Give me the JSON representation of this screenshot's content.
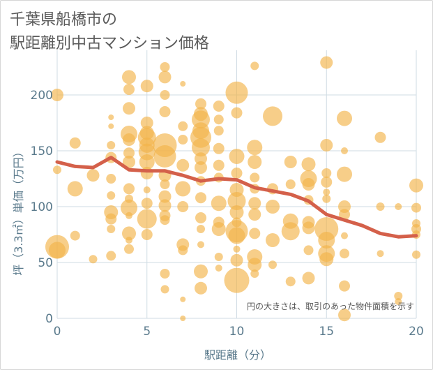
{
  "title": [
    "千葉県船橋市の",
    "駅距離別中古マンション価格"
  ],
  "chart_data": {
    "type": "scatter",
    "xlabel": "駅距離（分）",
    "ylabel": "坪（3.3㎡）単価（万円）",
    "xlim": [
      0,
      20
    ],
    "ylim": [
      0,
      240
    ],
    "xticks": [
      0,
      5,
      10,
      15,
      20
    ],
    "yticks": [
      0,
      50,
      100,
      150,
      200
    ],
    "grid": true,
    "annotation": "円の大きさは、取引のあった物件面積を示す",
    "colors": {
      "bubble": "#f2b34a",
      "trend": "#d4604a",
      "grid": "#cfdbe3",
      "axis_text": "#5a7a8c"
    },
    "bubbles": [
      {
        "x": 0,
        "y": 200,
        "s": 9
      },
      {
        "x": 0,
        "y": 133,
        "s": 6
      },
      {
        "x": 0,
        "y": 64,
        "s": 17
      },
      {
        "x": 0,
        "y": 61,
        "s": 12
      },
      {
        "x": 1,
        "y": 157,
        "s": 8
      },
      {
        "x": 1,
        "y": 116,
        "s": 11
      },
      {
        "x": 1,
        "y": 74,
        "s": 7
      },
      {
        "x": 2,
        "y": 128,
        "s": 9
      },
      {
        "x": 2,
        "y": 53,
        "s": 6
      },
      {
        "x": 3,
        "y": 180,
        "s": 4
      },
      {
        "x": 3,
        "y": 172,
        "s": 4
      },
      {
        "x": 3,
        "y": 155,
        "s": 6
      },
      {
        "x": 3,
        "y": 144,
        "s": 8
      },
      {
        "x": 3,
        "y": 125,
        "s": 7
      },
      {
        "x": 3,
        "y": 110,
        "s": 6
      },
      {
        "x": 3,
        "y": 95,
        "s": 10
      },
      {
        "x": 3,
        "y": 89,
        "s": 8
      },
      {
        "x": 3,
        "y": 80,
        "s": 6
      },
      {
        "x": 3,
        "y": 56,
        "s": 7
      },
      {
        "x": 4,
        "y": 216,
        "s": 10
      },
      {
        "x": 4,
        "y": 205,
        "s": 8
      },
      {
        "x": 4,
        "y": 188,
        "s": 9
      },
      {
        "x": 4,
        "y": 165,
        "s": 12
      },
      {
        "x": 4,
        "y": 160,
        "s": 9
      },
      {
        "x": 4,
        "y": 148,
        "s": 8
      },
      {
        "x": 4,
        "y": 140,
        "s": 9
      },
      {
        "x": 4,
        "y": 116,
        "s": 8
      },
      {
        "x": 4,
        "y": 107,
        "s": 6
      },
      {
        "x": 4,
        "y": 99,
        "s": 12
      },
      {
        "x": 4,
        "y": 92,
        "s": 5
      },
      {
        "x": 4,
        "y": 76,
        "s": 10
      },
      {
        "x": 4,
        "y": 70,
        "s": 5
      },
      {
        "x": 4,
        "y": 62,
        "s": 7
      },
      {
        "x": 5,
        "y": 208,
        "s": 9
      },
      {
        "x": 5,
        "y": 175,
        "s": 9
      },
      {
        "x": 5,
        "y": 166,
        "s": 10
      },
      {
        "x": 5,
        "y": 162,
        "s": 13
      },
      {
        "x": 5,
        "y": 155,
        "s": 11
      },
      {
        "x": 5,
        "y": 149,
        "s": 12
      },
      {
        "x": 5,
        "y": 140,
        "s": 11
      },
      {
        "x": 5,
        "y": 130,
        "s": 9
      },
      {
        "x": 5,
        "y": 115,
        "s": 5
      },
      {
        "x": 5,
        "y": 103,
        "s": 8
      },
      {
        "x": 5,
        "y": 89,
        "s": 14
      },
      {
        "x": 5,
        "y": 75,
        "s": 8
      },
      {
        "x": 6,
        "y": 225,
        "s": 7
      },
      {
        "x": 6,
        "y": 216,
        "s": 9
      },
      {
        "x": 6,
        "y": 200,
        "s": 7
      },
      {
        "x": 6,
        "y": 185,
        "s": 8
      },
      {
        "x": 6,
        "y": 155,
        "s": 17
      },
      {
        "x": 6,
        "y": 145,
        "s": 16
      },
      {
        "x": 6,
        "y": 128,
        "s": 9
      },
      {
        "x": 6,
        "y": 120,
        "s": 7
      },
      {
        "x": 6,
        "y": 109,
        "s": 9
      },
      {
        "x": 6,
        "y": 101,
        "s": 9
      },
      {
        "x": 6,
        "y": 92,
        "s": 8
      },
      {
        "x": 6,
        "y": 88,
        "s": 7
      },
      {
        "x": 6,
        "y": 40,
        "s": 7
      },
      {
        "x": 6,
        "y": 26,
        "s": 6
      },
      {
        "x": 7,
        "y": 210,
        "s": 4
      },
      {
        "x": 7,
        "y": 172,
        "s": 7
      },
      {
        "x": 7,
        "y": 160,
        "s": 7
      },
      {
        "x": 7,
        "y": 137,
        "s": 9
      },
      {
        "x": 7,
        "y": 116,
        "s": 11
      },
      {
        "x": 7,
        "y": 100,
        "s": 8
      },
      {
        "x": 7,
        "y": 66,
        "s": 9
      },
      {
        "x": 7,
        "y": 61,
        "s": 7
      },
      {
        "x": 7,
        "y": 17,
        "s": 4
      },
      {
        "x": 7,
        "y": 0,
        "s": 4
      },
      {
        "x": 8,
        "y": 192,
        "s": 8
      },
      {
        "x": 8,
        "y": 183,
        "s": 10
      },
      {
        "x": 8,
        "y": 178,
        "s": 13
      },
      {
        "x": 8,
        "y": 168,
        "s": 12
      },
      {
        "x": 8,
        "y": 162,
        "s": 15
      },
      {
        "x": 8,
        "y": 153,
        "s": 13
      },
      {
        "x": 8,
        "y": 143,
        "s": 9
      },
      {
        "x": 8,
        "y": 135,
        "s": 9
      },
      {
        "x": 8,
        "y": 123,
        "s": 7
      },
      {
        "x": 8,
        "y": 108,
        "s": 8
      },
      {
        "x": 8,
        "y": 90,
        "s": 8
      },
      {
        "x": 8,
        "y": 80,
        "s": 6
      },
      {
        "x": 8,
        "y": 66,
        "s": 5
      },
      {
        "x": 8,
        "y": 42,
        "s": 10
      },
      {
        "x": 8,
        "y": 27,
        "s": 9
      },
      {
        "x": 9,
        "y": 190,
        "s": 8
      },
      {
        "x": 9,
        "y": 178,
        "s": 7
      },
      {
        "x": 9,
        "y": 168,
        "s": 7
      },
      {
        "x": 9,
        "y": 152,
        "s": 8
      },
      {
        "x": 9,
        "y": 137,
        "s": 8
      },
      {
        "x": 9,
        "y": 126,
        "s": 7
      },
      {
        "x": 9,
        "y": 103,
        "s": 11
      },
      {
        "x": 9,
        "y": 86,
        "s": 8
      },
      {
        "x": 9,
        "y": 80,
        "s": 10
      },
      {
        "x": 9,
        "y": 55,
        "s": 6
      },
      {
        "x": 9,
        "y": 45,
        "s": 5
      },
      {
        "x": 10,
        "y": 202,
        "s": 16
      },
      {
        "x": 10,
        "y": 184,
        "s": 8
      },
      {
        "x": 10,
        "y": 145,
        "s": 11
      },
      {
        "x": 10,
        "y": 130,
        "s": 8
      },
      {
        "x": 10,
        "y": 115,
        "s": 10
      },
      {
        "x": 10,
        "y": 105,
        "s": 13
      },
      {
        "x": 10,
        "y": 95,
        "s": 10
      },
      {
        "x": 10,
        "y": 86,
        "s": 7
      },
      {
        "x": 10,
        "y": 78,
        "s": 16
      },
      {
        "x": 10,
        "y": 74,
        "s": 12
      },
      {
        "x": 10,
        "y": 62,
        "s": 5
      },
      {
        "x": 10,
        "y": 52,
        "s": 9
      },
      {
        "x": 10,
        "y": 34,
        "s": 18
      },
      {
        "x": 11,
        "y": 226,
        "s": 6
      },
      {
        "x": 11,
        "y": 153,
        "s": 11
      },
      {
        "x": 11,
        "y": 140,
        "s": 10
      },
      {
        "x": 11,
        "y": 126,
        "s": 7
      },
      {
        "x": 11,
        "y": 116,
        "s": 7
      },
      {
        "x": 11,
        "y": 103,
        "s": 9
      },
      {
        "x": 11,
        "y": 93,
        "s": 9
      },
      {
        "x": 11,
        "y": 76,
        "s": 8
      },
      {
        "x": 11,
        "y": 55,
        "s": 11
      },
      {
        "x": 11,
        "y": 48,
        "s": 10
      },
      {
        "x": 11,
        "y": 40,
        "s": 6
      },
      {
        "x": 12,
        "y": 181,
        "s": 14
      },
      {
        "x": 12,
        "y": 116,
        "s": 8
      },
      {
        "x": 12,
        "y": 100,
        "s": 10
      },
      {
        "x": 12,
        "y": 70,
        "s": 10
      },
      {
        "x": 12,
        "y": 48,
        "s": 6
      },
      {
        "x": 13,
        "y": 140,
        "s": 9
      },
      {
        "x": 13,
        "y": 120,
        "s": 7
      },
      {
        "x": 13,
        "y": 87,
        "s": 11
      },
      {
        "x": 13,
        "y": 78,
        "s": 13
      },
      {
        "x": 13,
        "y": 33,
        "s": 7
      },
      {
        "x": 14,
        "y": 138,
        "s": 10
      },
      {
        "x": 14,
        "y": 125,
        "s": 12
      },
      {
        "x": 14,
        "y": 120,
        "s": 9
      },
      {
        "x": 14,
        "y": 106,
        "s": 7
      },
      {
        "x": 14,
        "y": 86,
        "s": 9
      },
      {
        "x": 14,
        "y": 81,
        "s": 9
      },
      {
        "x": 14,
        "y": 61,
        "s": 7
      },
      {
        "x": 14,
        "y": 36,
        "s": 9
      },
      {
        "x": 15,
        "y": 229,
        "s": 9
      },
      {
        "x": 15,
        "y": 155,
        "s": 9
      },
      {
        "x": 15,
        "y": 130,
        "s": 7
      },
      {
        "x": 15,
        "y": 122,
        "s": 8
      },
      {
        "x": 15,
        "y": 113,
        "s": 5
      },
      {
        "x": 15,
        "y": 107,
        "s": 6
      },
      {
        "x": 15,
        "y": 80,
        "s": 17
      },
      {
        "x": 15,
        "y": 70,
        "s": 12
      },
      {
        "x": 15,
        "y": 58,
        "s": 12
      },
      {
        "x": 15,
        "y": 53,
        "s": 10
      },
      {
        "x": 16,
        "y": 179,
        "s": 11
      },
      {
        "x": 16,
        "y": 150,
        "s": 5
      },
      {
        "x": 16,
        "y": 129,
        "s": 11
      },
      {
        "x": 16,
        "y": 100,
        "s": 9
      },
      {
        "x": 16,
        "y": 93,
        "s": 8
      },
      {
        "x": 16,
        "y": 74,
        "s": 5
      },
      {
        "x": 16,
        "y": 58,
        "s": 7
      },
      {
        "x": 16,
        "y": 29,
        "s": 8
      },
      {
        "x": 16,
        "y": 3,
        "s": 9
      },
      {
        "x": 18,
        "y": 162,
        "s": 8
      },
      {
        "x": 18,
        "y": 100,
        "s": 6
      },
      {
        "x": 18,
        "y": 58,
        "s": 5
      },
      {
        "x": 19,
        "y": 100,
        "s": 5
      },
      {
        "x": 19,
        "y": 20,
        "s": 6
      },
      {
        "x": 19,
        "y": 15,
        "s": 5
      },
      {
        "x": 20,
        "y": 119,
        "s": 10
      },
      {
        "x": 20,
        "y": 99,
        "s": 7
      },
      {
        "x": 20,
        "y": 85,
        "s": 6
      },
      {
        "x": 20,
        "y": 80,
        "s": 7
      },
      {
        "x": 20,
        "y": 75,
        "s": 6
      },
      {
        "x": 20,
        "y": 57,
        "s": 6
      }
    ],
    "trend": {
      "x": [
        0,
        1,
        2,
        3,
        4,
        5,
        6,
        7,
        8,
        9,
        10,
        11,
        12,
        13,
        14,
        15,
        16,
        17,
        18,
        19,
        20
      ],
      "y": [
        140,
        136,
        135,
        144,
        133,
        132,
        132,
        128,
        123,
        125,
        124,
        117,
        114,
        111,
        105,
        93,
        88,
        83,
        76,
        73,
        74
      ]
    }
  }
}
